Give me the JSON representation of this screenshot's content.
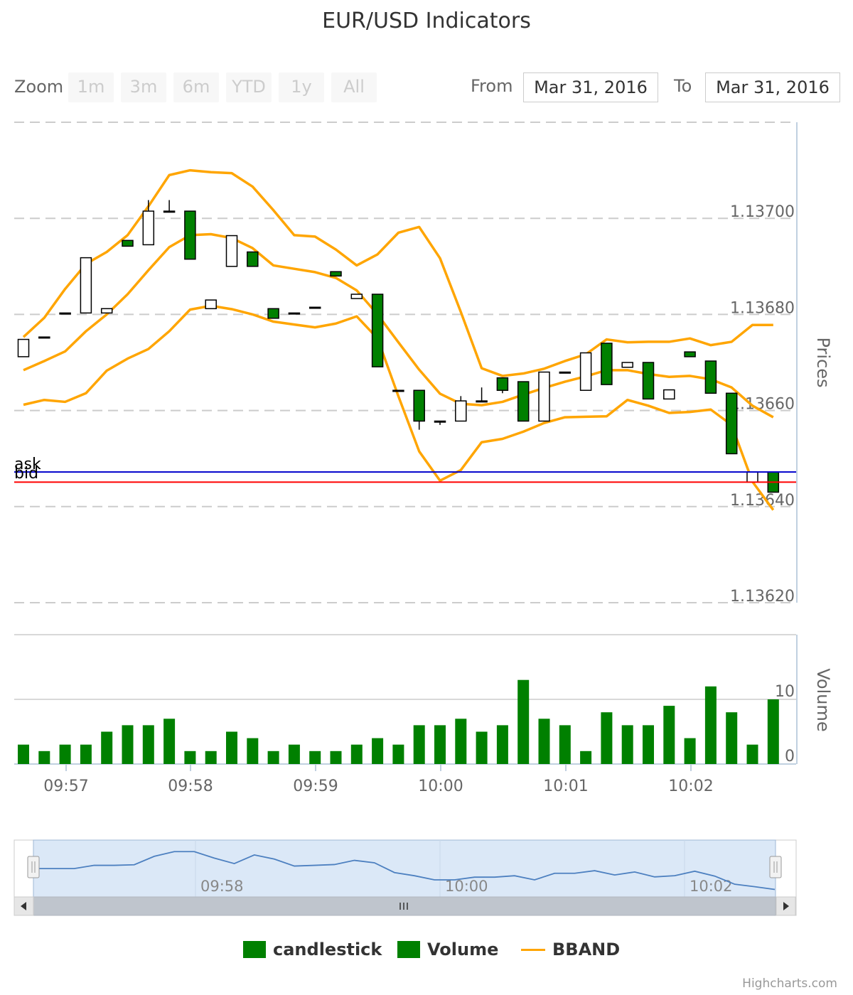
{
  "title": "EUR/USD Indicators",
  "range_selector": {
    "zoom_label": "Zoom",
    "buttons": [
      "1m",
      "3m",
      "6m",
      "YTD",
      "1y",
      "All"
    ],
    "from_label": "From",
    "from_value": "Mar 31, 2016",
    "to_label": "To",
    "to_value": "Mar 31, 2016"
  },
  "legend": {
    "candlestick": "candlestick",
    "volume": "Volume",
    "bband": "BBAND"
  },
  "credits": "Highcharts.com",
  "colors": {
    "candle_down": "#008000",
    "candle_up": "#ffffff",
    "volume": "#008000",
    "bband": "#ffa500",
    "ask_line": "#0000cc",
    "bid_line": "#ff0000",
    "navigator_fill": "#dbe8f7",
    "navigator_line": "#4d80c0"
  },
  "chart_data": [
    {
      "type": "candlestick",
      "name": "candlestick",
      "ylabel": "Prices",
      "ylim": [
        1.1362,
        1.1372
      ],
      "yticks": [
        "1.13620",
        "1.13640",
        "1.13660",
        "1.13680",
        "1.13700"
      ],
      "xticks": [
        "09:57",
        "09:58",
        "09:59",
        "10:00",
        "10:01",
        "10:02"
      ],
      "plot_lines": [
        {
          "label": "ask",
          "value": 1.136472
        },
        {
          "label": "bid",
          "value": 1.136451
        }
      ],
      "ohlc": [
        [
          1.136712,
          1.136748,
          1.136712,
          1.136748
        ],
        [
          1.136753,
          1.136753,
          1.136753,
          1.136753
        ],
        [
          1.136803,
          1.136803,
          1.136803,
          1.136803
        ],
        [
          1.136803,
          1.136918,
          1.136803,
          1.136918
        ],
        [
          1.136803,
          1.136812,
          1.136803,
          1.136812
        ],
        [
          1.136954,
          1.136954,
          1.136942,
          1.136942
        ],
        [
          1.136945,
          1.137038,
          1.136945,
          1.137015
        ],
        [
          1.137015,
          1.137038,
          1.137015,
          1.137015
        ],
        [
          1.137015,
          1.137015,
          1.136915,
          1.136915
        ],
        [
          1.136812,
          1.13683,
          1.136812,
          1.13683
        ],
        [
          1.1369,
          1.136964,
          1.1369,
          1.136964
        ],
        [
          1.13693,
          1.13693,
          1.1369,
          1.1369
        ],
        [
          1.136812,
          1.136812,
          1.136792,
          1.136792
        ],
        [
          1.136803,
          1.136803,
          1.136803,
          1.136803
        ],
        [
          1.136815,
          1.136815,
          1.136815,
          1.136815
        ],
        [
          1.136889,
          1.136889,
          1.13688,
          1.13688
        ],
        [
          1.136833,
          1.136842,
          1.136833,
          1.136842
        ],
        [
          1.136842,
          1.136842,
          1.136691,
          1.136691
        ],
        [
          1.136642,
          1.136642,
          1.136642,
          1.136642
        ],
        [
          1.136642,
          1.136642,
          1.13656,
          1.136578
        ],
        [
          1.136578,
          1.136578,
          1.13657,
          1.136578
        ],
        [
          1.136578,
          1.13663,
          1.136578,
          1.13662
        ],
        [
          1.13662,
          1.136648,
          1.13662,
          1.13662
        ],
        [
          1.136668,
          1.136668,
          1.136636,
          1.136642
        ],
        [
          1.13666,
          1.13666,
          1.136578,
          1.136578
        ],
        [
          1.136578,
          1.13668,
          1.136578,
          1.13668
        ],
        [
          1.13668,
          1.13668,
          1.13668,
          1.13668
        ],
        [
          1.136642,
          1.13672,
          1.136642,
          1.13672
        ],
        [
          1.13674,
          1.13674,
          1.136654,
          1.136654
        ],
        [
          1.13669,
          1.1367,
          1.13669,
          1.1367
        ],
        [
          1.1367,
          1.1367,
          1.136624,
          1.136624
        ],
        [
          1.136624,
          1.136643,
          1.136624,
          1.136643
        ],
        [
          1.136722,
          1.136722,
          1.136712,
          1.136712
        ],
        [
          1.136703,
          1.136703,
          1.136636,
          1.136636
        ],
        [
          1.136636,
          1.136636,
          1.13651,
          1.13651
        ],
        [
          1.136451,
          1.136472,
          1.136451,
          1.136472
        ],
        [
          1.136472,
          1.136472,
          1.13643,
          1.13643
        ]
      ],
      "bband": {
        "name": "BBAND",
        "upper": [
          1.136753,
          1.136793,
          1.136853,
          1.136905,
          1.13693,
          1.136965,
          1.137025,
          1.13709,
          1.1371,
          1.137096,
          1.137094,
          1.137066,
          1.137017,
          1.136965,
          1.136962,
          1.136935,
          1.136902,
          1.136925,
          1.13697,
          1.136982,
          1.136917,
          1.136805,
          1.136688,
          1.136672,
          1.136677,
          1.136687,
          1.136703,
          1.136717,
          1.136748,
          1.136742,
          1.136743,
          1.136743,
          1.13675,
          1.136736,
          1.136743,
          1.136778,
          1.136778
        ],
        "middle": [
          1.136684,
          1.136703,
          1.136723,
          1.136765,
          1.1368,
          1.136842,
          1.136892,
          1.13694,
          1.136965,
          1.136967,
          1.136959,
          1.136938,
          1.136902,
          1.136895,
          1.136888,
          1.136876,
          1.13685,
          1.1368,
          1.136742,
          1.136685,
          1.136635,
          1.136614,
          1.136611,
          1.136618,
          1.136633,
          1.136647,
          1.13666,
          1.136671,
          1.136684,
          1.136684,
          1.136676,
          1.13667,
          1.136672,
          1.136665,
          1.136648,
          1.13661,
          1.136586
        ],
        "lower": [
          1.136612,
          1.136622,
          1.136618,
          1.136636,
          1.136683,
          1.136708,
          1.136728,
          1.136765,
          1.13681,
          1.136818,
          1.136811,
          1.1368,
          1.136785,
          1.136779,
          1.136773,
          1.136781,
          1.136796,
          1.13675,
          1.13663,
          1.136515,
          1.136454,
          1.136476,
          1.136534,
          1.136541,
          1.136556,
          1.136574,
          1.136586,
          1.136587,
          1.136588,
          1.136622,
          1.13661,
          1.136595,
          1.136597,
          1.136602,
          1.13657,
          1.136452,
          1.136393
        ]
      }
    },
    {
      "type": "bar",
      "name": "Volume",
      "ylabel": "Volume",
      "ylim": [
        0,
        20
      ],
      "yticks": [
        "0",
        "10"
      ],
      "values": [
        3,
        2,
        3,
        3,
        5,
        6,
        6,
        7,
        2,
        2,
        5,
        4,
        2,
        3,
        2,
        2,
        3,
        4,
        3,
        6,
        6,
        7,
        5,
        6,
        13,
        7,
        6,
        2,
        8,
        6,
        6,
        9,
        4,
        12,
        8,
        3,
        10
      ]
    },
    {
      "type": "area",
      "name": "navigator",
      "xticks": [
        "09:58",
        "10:00",
        "10:02"
      ],
      "values": [
        1.136753,
        1.136753,
        1.136753,
        1.136803,
        1.136803,
        1.136812,
        1.136942,
        1.137015,
        1.137015,
        1.136915,
        1.13683,
        1.136964,
        1.1369,
        1.136792,
        1.136803,
        1.136815,
        1.13688,
        1.136842,
        1.136691,
        1.136642,
        1.136578,
        1.136578,
        1.13662,
        1.13662,
        1.136642,
        1.136578,
        1.13668,
        1.13668,
        1.13672,
        1.136654,
        1.1367,
        1.136624,
        1.136643,
        1.136712,
        1.136636,
        1.13651,
        1.136472,
        1.13643
      ]
    }
  ]
}
